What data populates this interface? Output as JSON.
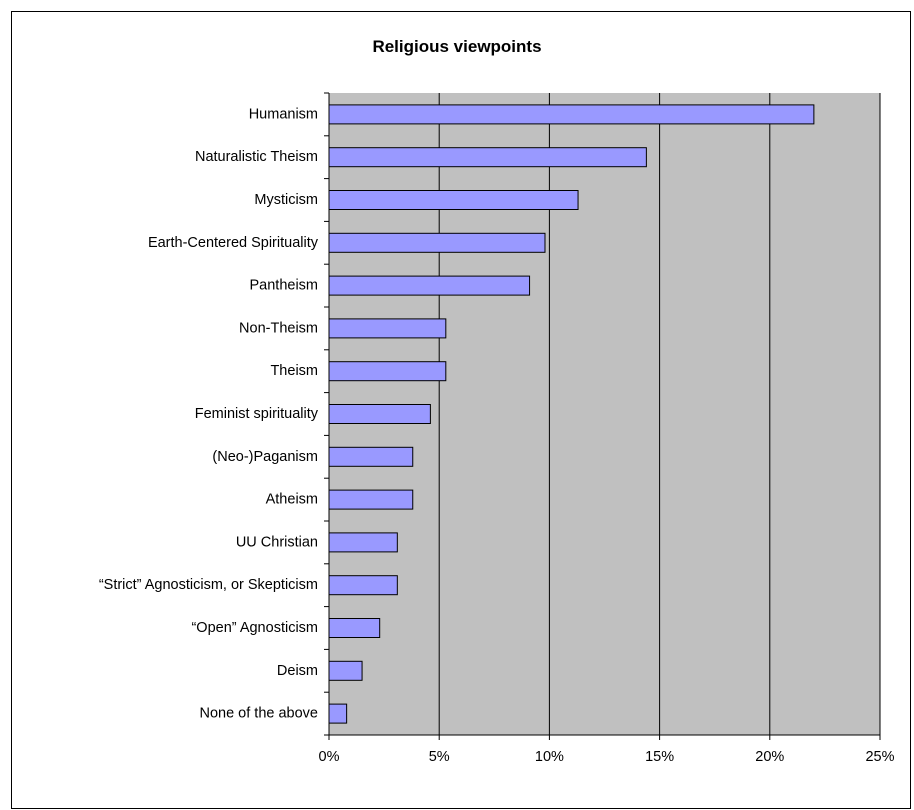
{
  "chart_data": {
    "type": "bar",
    "orientation": "horizontal",
    "title": "Religious viewpoints",
    "xlabel": "",
    "ylabel": "",
    "categories": [
      "Humanism",
      "Naturalistic Theism",
      "Mysticism",
      "Earth-Centered Spirituality",
      "Pantheism",
      "Non-Theism",
      "Theism",
      "Feminist spirituality",
      "(Neo-)Paganism",
      "Atheism",
      "UU Christian",
      "“Strict” Agnosticism, or Skepticism",
      "“Open” Agnosticism",
      "Deism",
      "None of the above"
    ],
    "values": [
      22.0,
      14.4,
      11.3,
      9.8,
      9.1,
      5.3,
      5.3,
      4.6,
      3.8,
      3.8,
      3.1,
      3.1,
      2.3,
      1.5,
      0.8
    ],
    "xlim": [
      0,
      25
    ],
    "xticks": [
      0,
      5,
      10,
      15,
      20,
      25
    ],
    "xtick_labels": [
      "0%",
      "5%",
      "10%",
      "15%",
      "20%",
      "25%"
    ],
    "grid": true,
    "legend": "none",
    "colors": {
      "bar_fill": "#9999ff",
      "bar_stroke": "#000000",
      "plot_background": "#c0c0c0",
      "gridline": "#000000"
    }
  }
}
